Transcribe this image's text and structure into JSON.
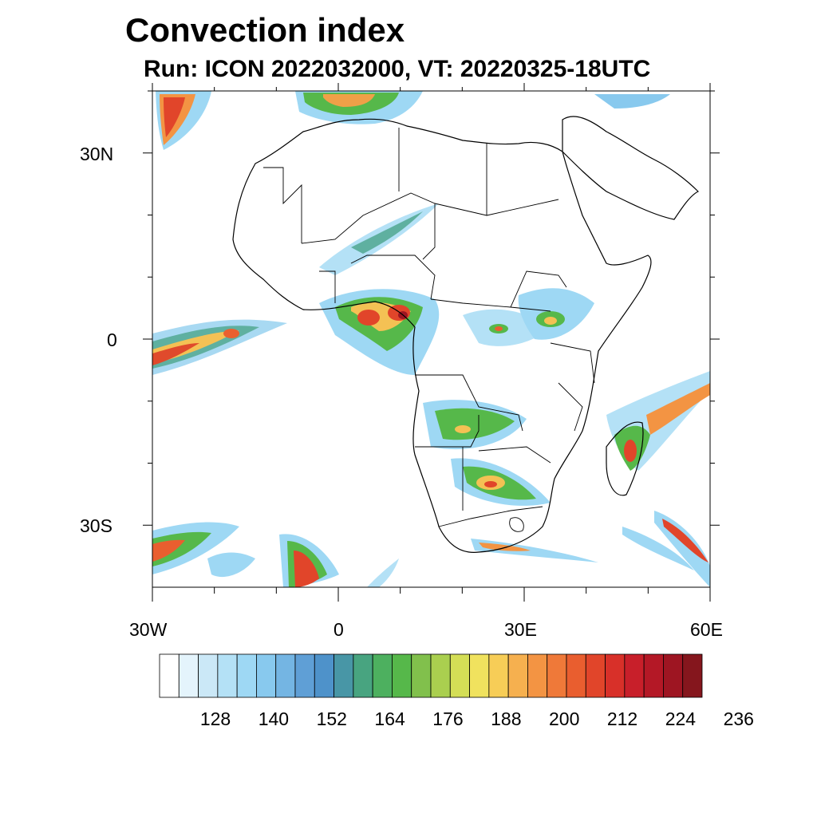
{
  "title": "Convection index",
  "subtitle": "Run: ICON 2022032000,  VT: 20220325-18UTC",
  "map": {
    "lon_range": [
      -30,
      60
    ],
    "lat_range": [
      -40,
      40
    ],
    "lat_ticks": [
      {
        "value": 30,
        "label": "30N"
      },
      {
        "value": 0,
        "label": "0"
      },
      {
        "value": -30,
        "label": "30S"
      }
    ],
    "lon_ticks": [
      {
        "value": -30,
        "label": "30W"
      },
      {
        "value": 0,
        "label": "0"
      },
      {
        "value": 30,
        "label": "30E"
      },
      {
        "value": 60,
        "label": "60E"
      }
    ]
  },
  "colorbar": {
    "colors": [
      "#ffffff",
      "#e4f4fc",
      "#cbe8f7",
      "#b4e1f6",
      "#9ed8f4",
      "#88c9ee",
      "#74b5e3",
      "#5f9fd6",
      "#4e92ca",
      "#4896a6",
      "#48a480",
      "#4db05f",
      "#56b84a",
      "#81c04c",
      "#aacf4f",
      "#d4de56",
      "#f0e25e",
      "#f7cd57",
      "#f6b04f",
      "#f39443",
      "#ef7939",
      "#e95e2f",
      "#e1452a",
      "#d83029",
      "#c81f2a",
      "#b41826",
      "#9e1522",
      "#85161d"
    ],
    "tick_labels": [
      "128",
      "140",
      "152",
      "164",
      "176",
      "188",
      "200",
      "212",
      "224",
      "236"
    ]
  }
}
